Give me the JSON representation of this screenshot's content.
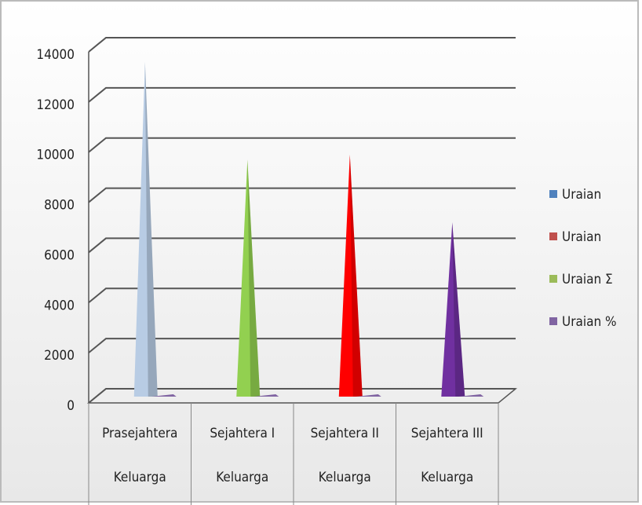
{
  "chart_data": {
    "type": "cone",
    "categories": [
      [
        "Prasejahtera",
        "Keluarga"
      ],
      [
        "Sejahtera I",
        "Keluarga"
      ],
      [
        "Sejahtera II",
        "Keluarga"
      ],
      [
        "Sejahtera III",
        "Keluarga"
      ]
    ],
    "values": [
      13600,
      9700,
      9900,
      7200
    ],
    "colors": [
      "#b8cce4",
      "#92d050",
      "#ff0000",
      "#7030a0"
    ],
    "series": [
      {
        "name": "Uraian",
        "color": "#4f81bd"
      },
      {
        "name": "Uraian",
        "color": "#c0504d"
      },
      {
        "name": "Uraian Σ",
        "color": "#9bbb59"
      },
      {
        "name": "Uraian %",
        "color": "#8064a2",
        "values": [
          40,
          30,
          30,
          25
        ]
      }
    ],
    "ylim": [
      0,
      14000
    ],
    "yticks": [
      0,
      2000,
      4000,
      6000,
      8000,
      10000,
      12000,
      14000
    ],
    "grid": true
  }
}
